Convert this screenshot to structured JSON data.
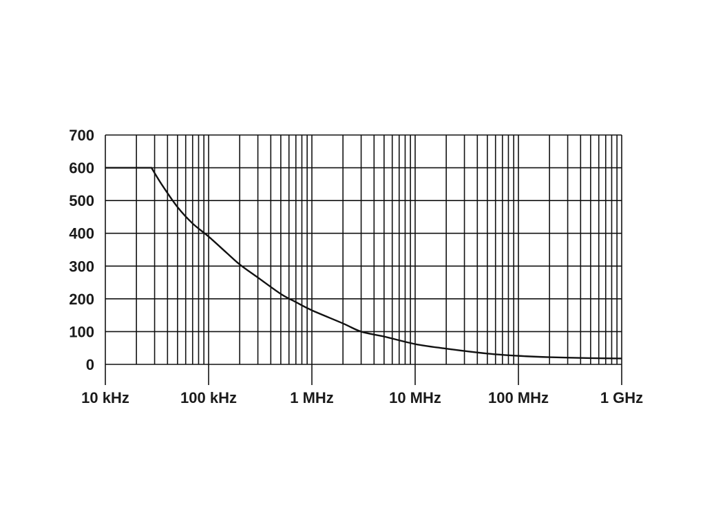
{
  "chart_data": {
    "type": "line",
    "title": "",
    "xlabel": "",
    "ylabel": "",
    "x_scale": "log",
    "xlim": [
      10000,
      1000000000
    ],
    "ylim": [
      0,
      700
    ],
    "grid": true,
    "x_ticks": [
      {
        "value": 10000,
        "label": "10 kHz"
      },
      {
        "value": 100000,
        "label": "100 kHz"
      },
      {
        "value": 1000000,
        "label": "1 MHz"
      },
      {
        "value": 10000000,
        "label": "10 MHz"
      },
      {
        "value": 100000000,
        "label": "100 MHz"
      },
      {
        "value": 1000000000,
        "label": "1 GHz"
      }
    ],
    "y_ticks": [
      {
        "value": 0,
        "label": "0"
      },
      {
        "value": 100,
        "label": "100"
      },
      {
        "value": 200,
        "label": "200"
      },
      {
        "value": 300,
        "label": "300"
      },
      {
        "value": 400,
        "label": "400"
      },
      {
        "value": 500,
        "label": "500"
      },
      {
        "value": 600,
        "label": "600"
      },
      {
        "value": 700,
        "label": "700"
      }
    ],
    "series": [
      {
        "color": "#111111",
        "x": [
          10000,
          20000,
          28000,
          35000,
          50000,
          70000,
          100000,
          150000,
          200000,
          300000,
          500000,
          700000,
          1000000,
          2000000,
          3000000,
          5000000,
          10000000,
          20000000,
          50000000,
          100000000,
          200000000,
          500000000,
          1000000000
        ],
        "y": [
          600,
          600,
          600,
          550,
          480,
          430,
          390,
          340,
          305,
          265,
          215,
          190,
          165,
          125,
          100,
          85,
          62,
          48,
          33,
          26,
          22,
          19,
          18
        ]
      }
    ]
  }
}
